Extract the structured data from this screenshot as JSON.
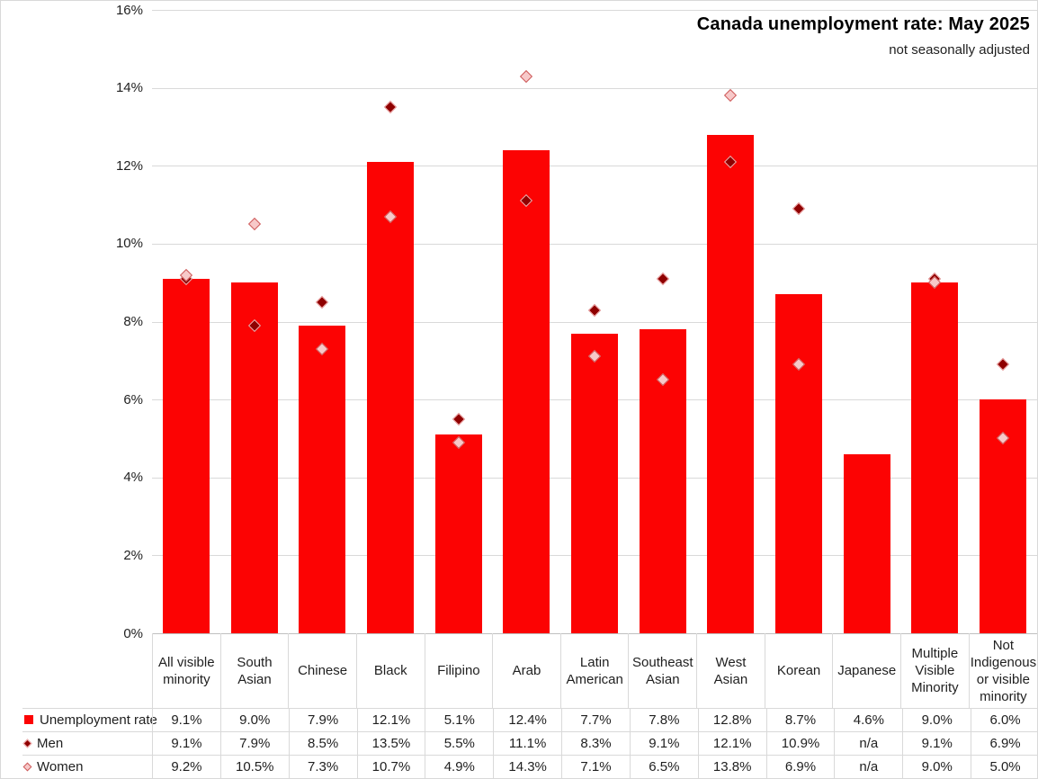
{
  "header": {
    "title": "Canada unemployment rate: May 2025",
    "subtitle": "not seasonally adjusted"
  },
  "y_axis": {
    "tick_labels": [
      "16%",
      "14%",
      "12%",
      "10%",
      "8%",
      "6%",
      "4%",
      "2%",
      "0%"
    ]
  },
  "table": {
    "na_label": "n/a"
  },
  "colors": {
    "bar": "#FC0303",
    "men_fill": "#8F0000",
    "men_border": "#F2AEAE",
    "women_fill": "#F7C9C9",
    "women_border": "#CE5B5B",
    "gridline": "#D9D9D9",
    "axis_line": "#BFBFBF"
  },
  "chart_data": {
    "type": "bar",
    "title": "Canada unemployment rate: May 2025",
    "subtitle": "not seasonally adjusted",
    "xlabel": "",
    "ylabel": "",
    "ylim": [
      0,
      16
    ],
    "y_tick_step": 2,
    "grid": true,
    "legend_position": "bottom-table",
    "categories": [
      "All visible minority",
      "South Asian",
      "Chinese",
      "Black",
      "Filipino",
      "Arab",
      "Latin American",
      "Southeast Asian",
      "West Asian",
      "Korean",
      "Japanese",
      "Multiple Visible Minority",
      "Not Indigenous or visible minority"
    ],
    "series": [
      {
        "name": "Unemployment rate",
        "type": "bar",
        "marker": "square",
        "values": [
          9.1,
          9.0,
          7.9,
          12.1,
          5.1,
          12.4,
          7.7,
          7.8,
          12.8,
          8.7,
          4.6,
          9.0,
          6.0
        ]
      },
      {
        "name": "Men",
        "type": "scatter",
        "marker": "diamond",
        "values": [
          9.1,
          7.9,
          8.5,
          13.5,
          5.5,
          11.1,
          8.3,
          9.1,
          12.1,
          10.9,
          null,
          9.1,
          6.9
        ]
      },
      {
        "name": "Women",
        "type": "scatter",
        "marker": "diamond",
        "values": [
          9.2,
          10.5,
          7.3,
          10.7,
          4.9,
          14.3,
          7.1,
          6.5,
          13.8,
          6.9,
          null,
          9.0,
          5.0
        ]
      }
    ]
  }
}
